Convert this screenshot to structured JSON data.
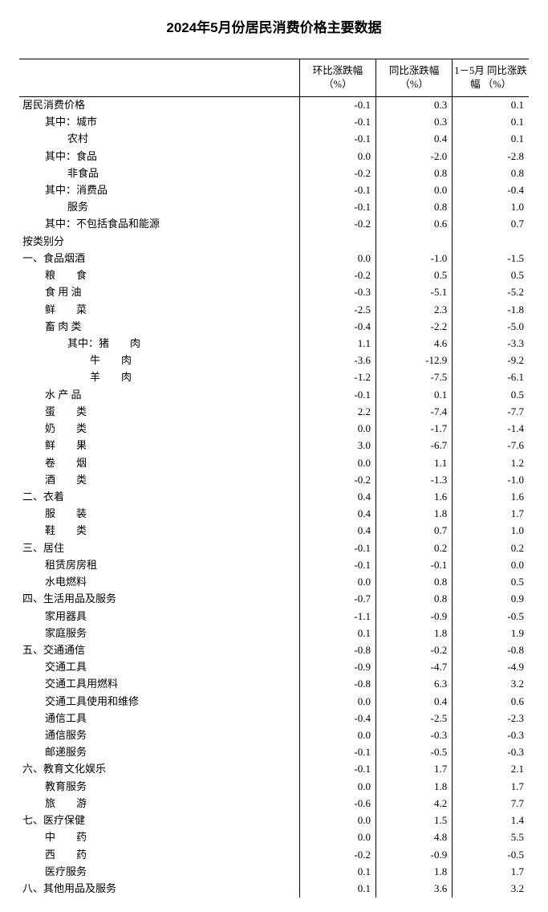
{
  "title": "2024年5月份居民消费价格主要数据",
  "columns": {
    "col1": "环比涨跌幅\n（%）",
    "col2": "同比涨跌幅\n（%）",
    "col3": "1－5月\n同比涨跌幅\n（%）"
  },
  "rows": [
    {
      "label": "居民消费价格",
      "indent": 0,
      "v1": "-0.1",
      "v2": "0.3",
      "v3": "0.1"
    },
    {
      "label": "其中：城市",
      "indent": 1,
      "v1": "-0.1",
      "v2": "0.3",
      "v3": "0.1"
    },
    {
      "label": "农村",
      "indent": 2,
      "v1": "-0.1",
      "v2": "0.4",
      "v3": "0.1"
    },
    {
      "label": "其中：食品",
      "indent": 1,
      "v1": "0.0",
      "v2": "-2.0",
      "v3": "-2.8"
    },
    {
      "label": "非食品",
      "indent": 2,
      "v1": "-0.2",
      "v2": "0.8",
      "v3": "0.8"
    },
    {
      "label": "其中：消费品",
      "indent": 1,
      "v1": "-0.1",
      "v2": "0.0",
      "v3": "-0.4"
    },
    {
      "label": "服务",
      "indent": 2,
      "v1": "-0.1",
      "v2": "0.8",
      "v3": "1.0"
    },
    {
      "label": "其中：不包括食品和能源",
      "indent": 1,
      "v1": "-0.2",
      "v2": "0.6",
      "v3": "0.7"
    },
    {
      "label": "按类别分",
      "indent": 0,
      "v1": "",
      "v2": "",
      "v3": ""
    },
    {
      "label": "一、食品烟酒",
      "indent": 0,
      "v1": "0.0",
      "v2": "-1.0",
      "v3": "-1.5"
    },
    {
      "label": "粮　　食",
      "indent": 1,
      "v1": "-0.2",
      "v2": "0.5",
      "v3": "0.5"
    },
    {
      "label": "食 用 油",
      "indent": 1,
      "v1": "-0.3",
      "v2": "-5.1",
      "v3": "-5.2"
    },
    {
      "label": "鲜　　菜",
      "indent": 1,
      "v1": "-2.5",
      "v2": "2.3",
      "v3": "-1.8"
    },
    {
      "label": "畜 肉 类",
      "indent": 1,
      "v1": "-0.4",
      "v2": "-2.2",
      "v3": "-5.0"
    },
    {
      "label": "其中：猪　　肉",
      "indent": 2,
      "v1": "1.1",
      "v2": "4.6",
      "v3": "-3.3"
    },
    {
      "label": "牛　　肉",
      "indent": 3,
      "v1": "-3.6",
      "v2": "-12.9",
      "v3": "-9.2"
    },
    {
      "label": "羊　　肉",
      "indent": 3,
      "v1": "-1.2",
      "v2": "-7.5",
      "v3": "-6.1"
    },
    {
      "label": "水 产 品",
      "indent": 1,
      "v1": "-0.1",
      "v2": "0.1",
      "v3": "0.5"
    },
    {
      "label": "蛋　　类",
      "indent": 1,
      "v1": "2.2",
      "v2": "-7.4",
      "v3": "-7.7"
    },
    {
      "label": "奶　　类",
      "indent": 1,
      "v1": "0.0",
      "v2": "-1.7",
      "v3": "-1.4"
    },
    {
      "label": "鲜　　果",
      "indent": 1,
      "v1": "3.0",
      "v2": "-6.7",
      "v3": "-7.6"
    },
    {
      "label": "卷　　烟",
      "indent": 1,
      "v1": "0.0",
      "v2": "1.1",
      "v3": "1.2"
    },
    {
      "label": "酒　　类",
      "indent": 1,
      "v1": "-0.2",
      "v2": "-1.3",
      "v3": "-1.0"
    },
    {
      "label": "二、衣着",
      "indent": 0,
      "v1": "0.4",
      "v2": "1.6",
      "v3": "1.6"
    },
    {
      "label": "服　　装",
      "indent": 1,
      "v1": "0.4",
      "v2": "1.8",
      "v3": "1.7"
    },
    {
      "label": "鞋　　类",
      "indent": 1,
      "v1": "0.4",
      "v2": "0.7",
      "v3": "1.0"
    },
    {
      "label": "三、居住",
      "indent": 0,
      "v1": "-0.1",
      "v2": "0.2",
      "v3": "0.2"
    },
    {
      "label": "租赁房房租",
      "indent": 1,
      "v1": "-0.1",
      "v2": "-0.1",
      "v3": "0.0"
    },
    {
      "label": "水电燃料",
      "indent": 1,
      "v1": "0.0",
      "v2": "0.8",
      "v3": "0.5"
    },
    {
      "label": "四、生活用品及服务",
      "indent": 0,
      "v1": "-0.7",
      "v2": "0.8",
      "v3": "0.9"
    },
    {
      "label": "家用器具",
      "indent": 1,
      "v1": "-1.1",
      "v2": "-0.9",
      "v3": "-0.5"
    },
    {
      "label": "家庭服务",
      "indent": 1,
      "v1": "0.1",
      "v2": "1.8",
      "v3": "1.9"
    },
    {
      "label": "五、交通通信",
      "indent": 0,
      "v1": "-0.8",
      "v2": "-0.2",
      "v3": "-0.8"
    },
    {
      "label": "交通工具",
      "indent": 1,
      "v1": "-0.9",
      "v2": "-4.7",
      "v3": "-4.9"
    },
    {
      "label": "交通工具用燃料",
      "indent": 1,
      "v1": "-0.8",
      "v2": "6.3",
      "v3": "3.2"
    },
    {
      "label": "交通工具使用和维修",
      "indent": 1,
      "v1": "0.0",
      "v2": "0.4",
      "v3": "0.6"
    },
    {
      "label": "通信工具",
      "indent": 1,
      "v1": "-0.4",
      "v2": "-2.5",
      "v3": "-2.3"
    },
    {
      "label": "通信服务",
      "indent": 1,
      "v1": "0.0",
      "v2": "-0.3",
      "v3": "-0.3"
    },
    {
      "label": "邮递服务",
      "indent": 1,
      "v1": "-0.1",
      "v2": "-0.5",
      "v3": "-0.3"
    },
    {
      "label": "六、教育文化娱乐",
      "indent": 0,
      "v1": "-0.1",
      "v2": "1.7",
      "v3": "2.1"
    },
    {
      "label": "教育服务",
      "indent": 1,
      "v1": "0.0",
      "v2": "1.8",
      "v3": "1.7"
    },
    {
      "label": "旅　　游",
      "indent": 1,
      "v1": "-0.6",
      "v2": "4.2",
      "v3": "7.7"
    },
    {
      "label": "七、医疗保健",
      "indent": 0,
      "v1": "0.0",
      "v2": "1.5",
      "v3": "1.4"
    },
    {
      "label": "中　　药",
      "indent": 1,
      "v1": "0.0",
      "v2": "4.8",
      "v3": "5.5"
    },
    {
      "label": "西　　药",
      "indent": 1,
      "v1": "-0.2",
      "v2": "-0.9",
      "v3": "-0.5"
    },
    {
      "label": "医疗服务",
      "indent": 1,
      "v1": "0.1",
      "v2": "1.8",
      "v3": "1.7"
    },
    {
      "label": "八、其他用品及服务",
      "indent": 0,
      "v1": "0.1",
      "v2": "3.6",
      "v3": "3.2"
    }
  ]
}
